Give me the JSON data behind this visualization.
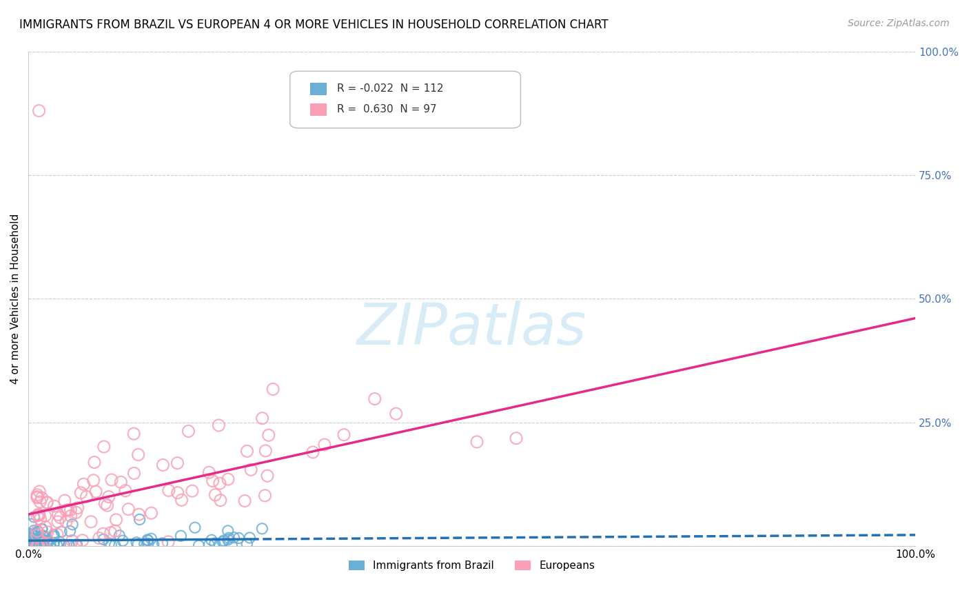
{
  "title": "IMMIGRANTS FROM BRAZIL VS EUROPEAN 4 OR MORE VEHICLES IN HOUSEHOLD CORRELATION CHART",
  "source_text": "Source: ZipAtlas.com",
  "ylabel": "4 or more Vehicles in Household",
  "legend_label_1": "Immigrants from Brazil",
  "legend_label_2": "Europeans",
  "R1": -0.022,
  "N1": 112,
  "R2": 0.63,
  "N2": 97,
  "color_brazil": "#6baed6",
  "color_europe": "#fa9fb5",
  "color_brazil_line": "#2171b5",
  "color_europe_line": "#e7298a",
  "watermark": "ZIPatlas",
  "background_color": "#ffffff",
  "grid_color": "#cccccc",
  "title_fontsize": 12,
  "axis_label_fontsize": 11,
  "right_tick_color": "#4472c4"
}
